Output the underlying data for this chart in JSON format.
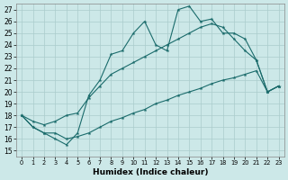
{
  "xlabel": "Humidex (Indice chaleur)",
  "background_color": "#cce8e8",
  "grid_color": "#aacccc",
  "line_color": "#1a6b6b",
  "xlim": [
    -0.5,
    23.5
  ],
  "ylim": [
    14.5,
    27.5
  ],
  "xticks": [
    0,
    1,
    2,
    3,
    4,
    5,
    6,
    7,
    8,
    9,
    10,
    11,
    12,
    13,
    14,
    15,
    16,
    17,
    18,
    19,
    20,
    21,
    22,
    23
  ],
  "yticks": [
    15,
    16,
    17,
    18,
    19,
    20,
    21,
    22,
    23,
    24,
    25,
    26,
    27
  ],
  "hours": [
    0,
    1,
    2,
    3,
    4,
    5,
    6,
    7,
    8,
    9,
    10,
    11,
    12,
    13,
    14,
    15,
    16,
    17,
    18,
    19,
    20,
    21,
    22,
    23
  ],
  "line_top": [
    18,
    17,
    16.5,
    16,
    15.5,
    16.5,
    19.7,
    21.0,
    23.2,
    23.5,
    25.0,
    26.0,
    24.0,
    23.5,
    27.0,
    27.3,
    26.0,
    26.2,
    25.0,
    25.0,
    24.5,
    22.7,
    20.0,
    20.5
  ],
  "line_mid": [
    18,
    17.5,
    17.2,
    17.5,
    18.0,
    18.2,
    19.5,
    20.5,
    21.5,
    22.0,
    22.5,
    23.0,
    23.5,
    24.0,
    24.5,
    25.0,
    25.5,
    25.8,
    25.5,
    24.5,
    23.5,
    22.7,
    20.0,
    20.5
  ],
  "line_bot": [
    18,
    17,
    16.5,
    16.5,
    16.0,
    16.2,
    16.5,
    17.0,
    17.5,
    17.8,
    18.2,
    18.5,
    19.0,
    19.3,
    19.7,
    20.0,
    20.3,
    20.7,
    21.0,
    21.2,
    21.5,
    21.8,
    20.0,
    20.5
  ]
}
